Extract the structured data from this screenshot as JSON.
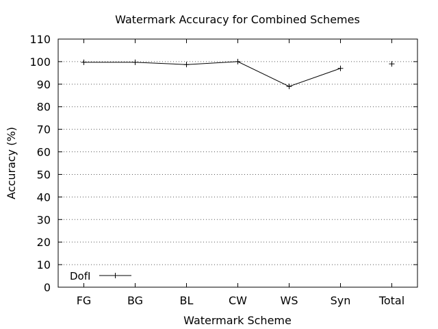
{
  "chart_data": {
    "type": "line",
    "title": "Watermark Accuracy for Combined Schemes",
    "xlabel": "Watermark Scheme",
    "ylabel": "Accuracy (%)",
    "categories": [
      "FG",
      "BG",
      "BL",
      "CW",
      "WS",
      "Syn",
      "Total"
    ],
    "ylim": [
      0,
      110
    ],
    "yticks": [
      0,
      10,
      20,
      30,
      40,
      50,
      60,
      70,
      80,
      90,
      100,
      110
    ],
    "grid": true,
    "legend_position": "bottom-left",
    "series": [
      {
        "name": "DofI",
        "values": [
          99.7,
          99.7,
          98.7,
          100,
          89,
          97,
          99
        ],
        "connected_through": "Syn",
        "marker": "+"
      }
    ]
  }
}
